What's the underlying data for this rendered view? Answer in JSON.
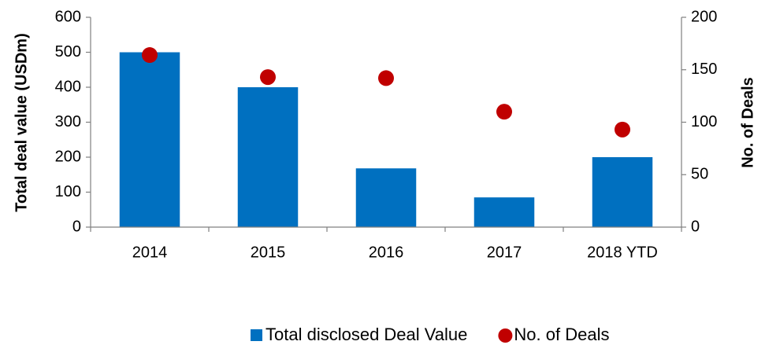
{
  "chart_data": {
    "type": "bar",
    "categories": [
      "2014",
      "2015",
      "2016",
      "2017",
      "2018 YTD"
    ],
    "series": [
      {
        "name": "Total disclosed Deal Value",
        "type": "bar",
        "color": "#0070c0",
        "values": [
          500,
          400,
          168,
          85,
          200
        ]
      },
      {
        "name": "No. of Deals",
        "type": "scatter",
        "axis": "y2",
        "color": "#c00000",
        "values": [
          164,
          143,
          142,
          110,
          93
        ]
      }
    ],
    "y_label": "Total deal value (USDm)",
    "y2_label": "No. of Deals",
    "ylim": [
      0,
      600
    ],
    "yticks": [
      0,
      100,
      200,
      300,
      400,
      500,
      600
    ],
    "y2lim": [
      0,
      200
    ],
    "y2ticks": [
      0,
      50,
      100,
      150,
      200
    ],
    "legend": "bottom"
  }
}
